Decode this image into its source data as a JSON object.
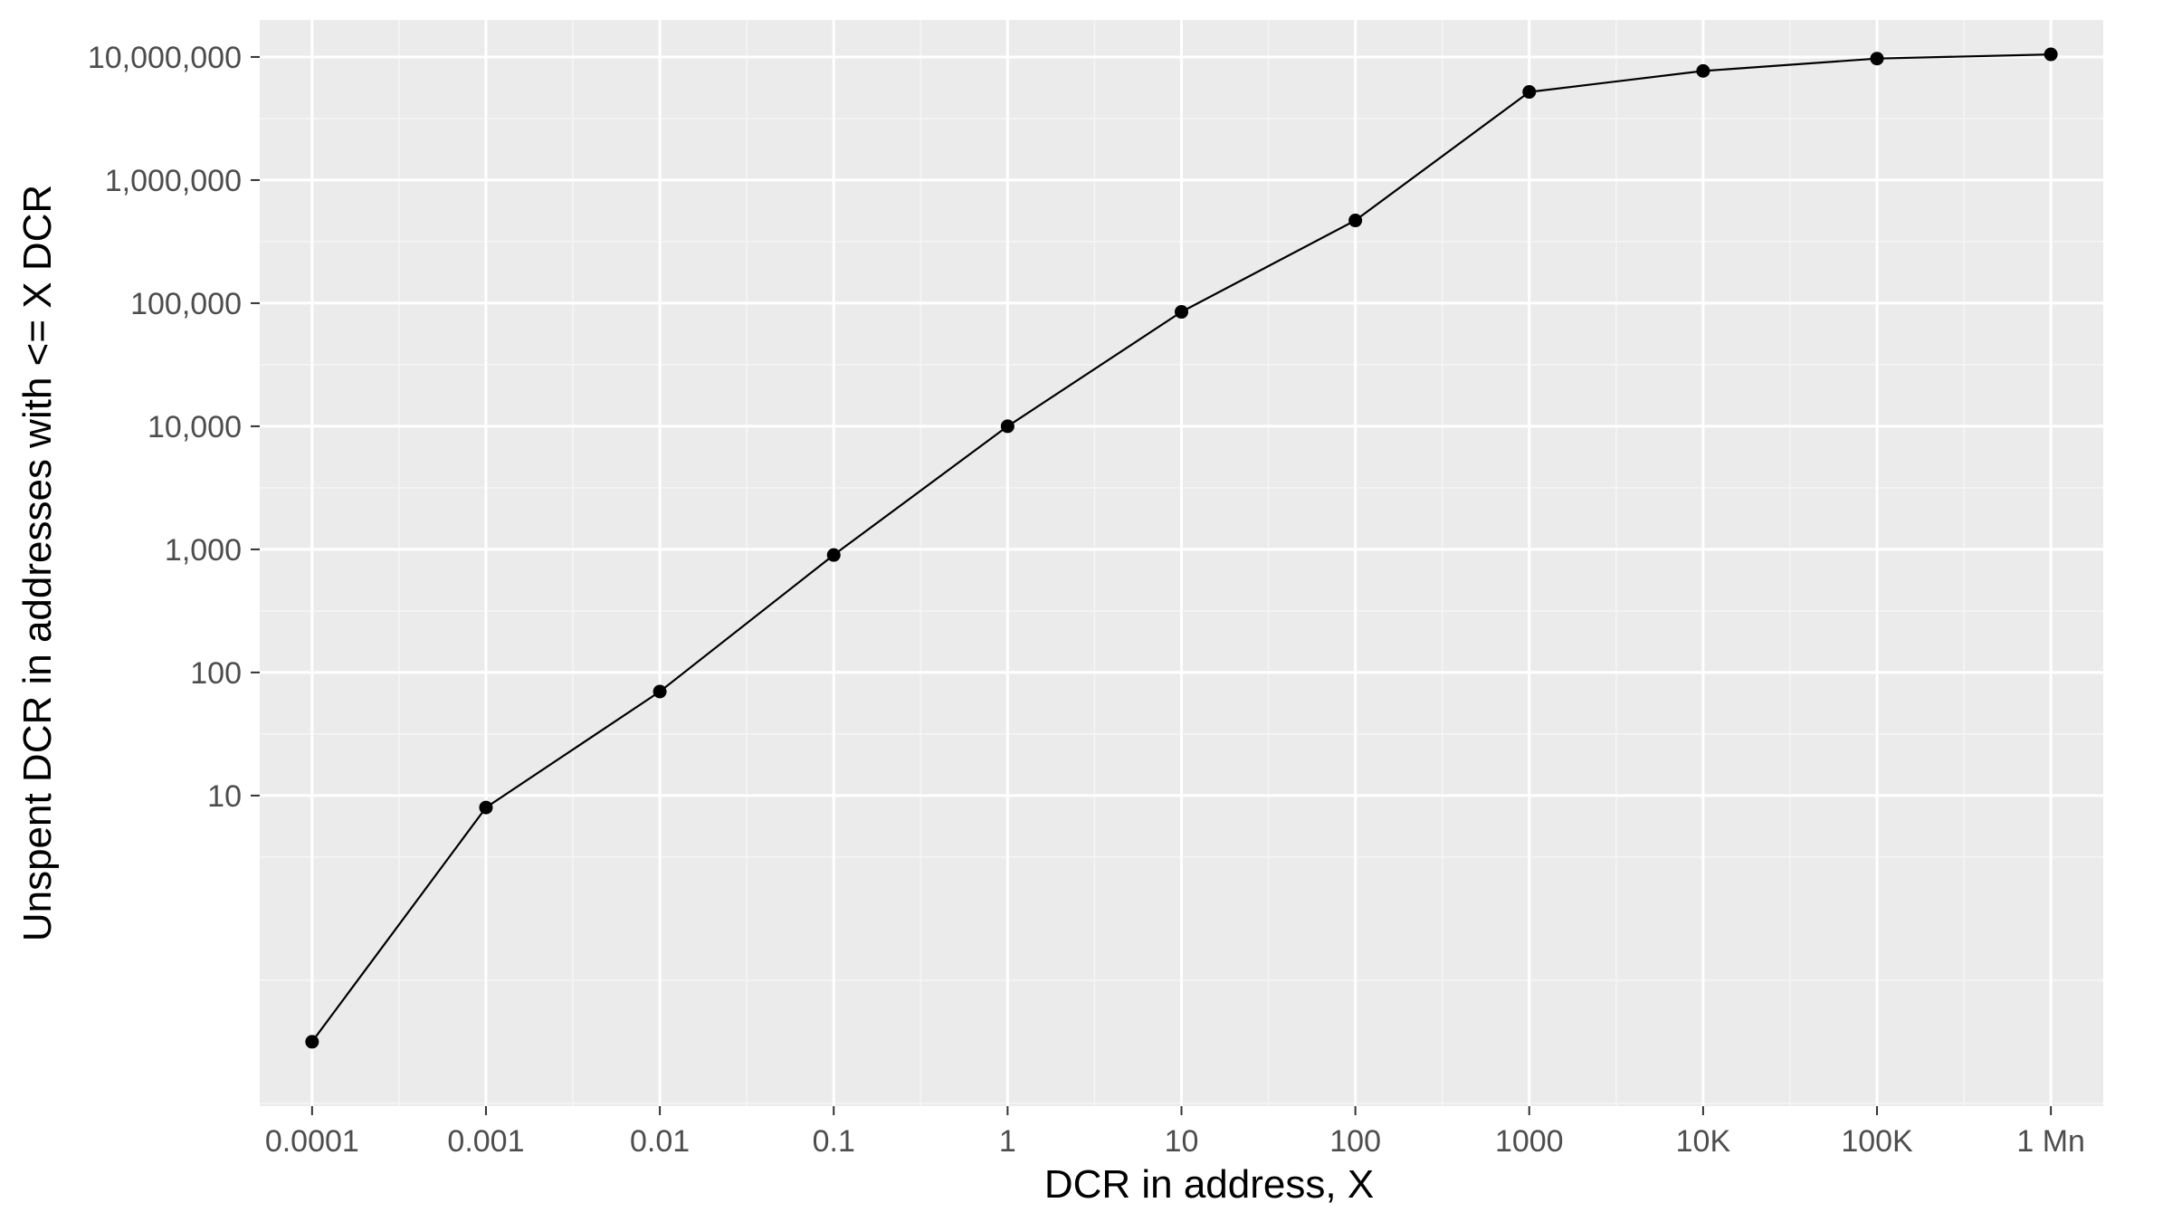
{
  "chart_data": {
    "type": "line",
    "xlabel": "DCR in address, X",
    "ylabel": "Unspent DCR in addresses with <= X DCR",
    "x_scale": "log10",
    "y_scale": "log10",
    "x": [
      0.0001,
      0.001,
      0.01,
      0.1,
      1,
      10,
      100,
      1000,
      10000,
      100000,
      1000000
    ],
    "y": [
      0.1,
      8,
      70,
      900,
      10000,
      85000,
      470000,
      5200000,
      7700000,
      9700000,
      10500000
    ],
    "xticks": [
      {
        "value": 0.0001,
        "label": "0.0001"
      },
      {
        "value": 0.001,
        "label": "0.001"
      },
      {
        "value": 0.01,
        "label": "0.01"
      },
      {
        "value": 0.1,
        "label": "0.1"
      },
      {
        "value": 1,
        "label": "1"
      },
      {
        "value": 10,
        "label": "10"
      },
      {
        "value": 100,
        "label": "100"
      },
      {
        "value": 1000,
        "label": "1000"
      },
      {
        "value": 10000,
        "label": "10K"
      },
      {
        "value": 100000,
        "label": "100K"
      },
      {
        "value": 1000000,
        "label": "1 Mn"
      }
    ],
    "yticks": [
      {
        "value": 10,
        "label": "10"
      },
      {
        "value": 100,
        "label": "100"
      },
      {
        "value": 1000,
        "label": "1,000"
      },
      {
        "value": 10000,
        "label": "10,000"
      },
      {
        "value": 100000,
        "label": "100,000"
      },
      {
        "value": 1000000,
        "label": "1,000,000"
      },
      {
        "value": 10000000,
        "label": "10,000,000"
      }
    ],
    "xlim": [
      5e-05,
      2000000
    ],
    "ylim": [
      0.03,
      20000000
    ],
    "grid": true,
    "colors": {
      "panel_background": "#ebebeb",
      "grid_major": "#ffffff",
      "grid_minor": "#f5f5f5",
      "line": "#000000",
      "point": "#000000",
      "tick_label": "#4d4d4d",
      "axis_title": "#000000"
    }
  }
}
